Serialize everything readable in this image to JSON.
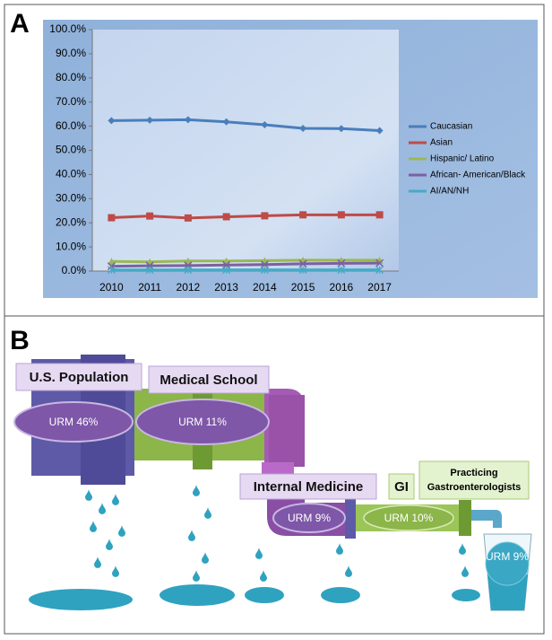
{
  "panels": {
    "a": "A",
    "b": "B"
  },
  "chart_data": {
    "type": "line",
    "categories": [
      "2010",
      "2011",
      "2012",
      "2013",
      "2014",
      "2015",
      "2016",
      "2017"
    ],
    "series": [
      {
        "name": "Caucasian",
        "color": "#4a7ebb",
        "marker": "diamond",
        "values": [
          62.3,
          62.5,
          62.7,
          61.8,
          60.6,
          59.1,
          59.0,
          58.2
        ]
      },
      {
        "name": "Asian",
        "color": "#be4b48",
        "marker": "square",
        "values": [
          22.1,
          22.8,
          22.0,
          22.5,
          22.9,
          23.3,
          23.3,
          23.3
        ]
      },
      {
        "name": "Hispanic/ Latino",
        "color": "#98b954",
        "marker": "triangle",
        "values": [
          4.0,
          3.8,
          4.2,
          4.2,
          4.3,
          4.5,
          4.5,
          4.5
        ]
      },
      {
        "name": "African- American/Black",
        "color": "#7d60a0",
        "marker": "cross",
        "values": [
          2.0,
          2.2,
          2.3,
          2.5,
          2.7,
          3.0,
          3.2,
          3.3
        ]
      },
      {
        "name": "AI/AN/NH",
        "color": "#46aac5",
        "marker": "star",
        "values": [
          0.5,
          0.5,
          0.5,
          0.5,
          0.5,
          0.5,
          0.5,
          0.5
        ]
      }
    ],
    "ylim": [
      0,
      100
    ],
    "yticks": [
      {
        "value": 0,
        "label": "0.0%"
      },
      {
        "value": 10,
        "label": "10.0%"
      },
      {
        "value": 20,
        "label": "20.0%"
      },
      {
        "value": 30,
        "label": "30.0%"
      },
      {
        "value": 40,
        "label": "40.0%"
      },
      {
        "value": 50,
        "label": "50.0%"
      },
      {
        "value": 60,
        "label": "60.0%"
      },
      {
        "value": 70,
        "label": "70.0%"
      },
      {
        "value": 80,
        "label": "80.0%"
      },
      {
        "value": 90,
        "label": "90.0%"
      },
      {
        "value": 100,
        "label": "100.0%"
      }
    ],
    "grid": false,
    "legend": "right"
  },
  "diagram": {
    "stages": [
      "U.S. Population",
      "Medical School",
      "Internal Medicine",
      "GI"
    ],
    "final_stage": [
      "Practicing",
      "Gastroenterologists"
    ],
    "urm": [
      "URM 46%",
      "URM 11%",
      "URM 9%",
      "URM 10%",
      "URM 9%"
    ]
  }
}
